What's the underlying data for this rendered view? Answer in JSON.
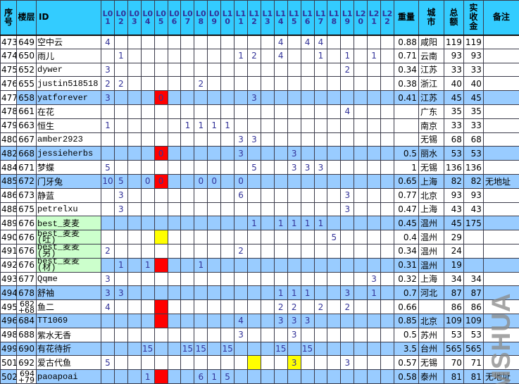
{
  "watermark": "MSHUA",
  "colors": {
    "header_bg": "#33CCFF",
    "row_highlight": "#99CCFF",
    "id_green": "#CCFFCC",
    "cell_red": "#FF0000",
    "cell_yellow": "#FFFF00",
    "digit_navy": "#333399"
  },
  "header": {
    "seq": "序号",
    "floor": "楼层",
    "id": "ID",
    "l_cols": [
      "L0\n1",
      "L0\n2",
      "L0\n3",
      "L0\n4",
      "L0\n5",
      "L0\n6",
      "L0\n7",
      "L0\n8",
      "L0\n9",
      "L1\n0",
      "L1\n1",
      "L1\n2",
      "L1\n3",
      "L1\n4",
      "L1\n5",
      "L1\n6",
      "L1\n7",
      "L1\n8",
      "L1\n9",
      "L2\n0",
      "L2\n1",
      "L2\n2"
    ],
    "weight": "重量",
    "city": "城\n市",
    "total": "总\n额",
    "received": "实\n收\n金",
    "note": "备注"
  },
  "rows": [
    {
      "seq": "473",
      "floor": "649",
      "id": "空中云",
      "cells": {
        "1": "4",
        "14": "4",
        "16": "4",
        "17": "4"
      },
      "w": "0.88",
      "city": "咸阳",
      "t": "119",
      "r": "119"
    },
    {
      "seq": "474",
      "floor": "650",
      "id": "雨儿",
      "cells": {
        "2": "1",
        "11": "1",
        "12": "2",
        "14": "4",
        "17": "1",
        "19": "1",
        "21": "1"
      },
      "w": "0.71",
      "city": "云南",
      "t": "93",
      "r": "93"
    },
    {
      "seq": "475",
      "floor": "652",
      "id": "dywer",
      "cells": {
        "1": "3",
        "19": "2"
      },
      "w": "0.34",
      "city": "江苏",
      "t": "33",
      "r": "33"
    },
    {
      "seq": "476",
      "floor": "655",
      "id": "justin518518",
      "cells": {
        "1": "2",
        "2": "2",
        "8": "2"
      },
      "w": "0.38",
      "city": "浙江",
      "t": "40",
      "r": "40"
    },
    {
      "seq": "477",
      "floor": "658",
      "id": "yatforever",
      "cells": {
        "1": "3",
        "5": "0",
        "12": "3"
      },
      "bg": {
        "5": "red"
      },
      "hl": true,
      "skip": [
        "seq"
      ],
      "w": "0.41",
      "city": "江苏",
      "t": "45",
      "r": "45"
    },
    {
      "seq": "478",
      "floor": "661",
      "id": "在花",
      "cells": {
        "19": "4"
      },
      "w": "",
      "city": "广东",
      "t": "35",
      "r": "35"
    },
    {
      "seq": "479",
      "floor": "663",
      "id": "恒生",
      "cells": {
        "1": "1",
        "7": "1",
        "8": "1",
        "9": "1",
        "10": "1"
      },
      "w": "",
      "city": "南京",
      "t": "33",
      "r": "33"
    },
    {
      "seq": "480",
      "floor": "667",
      "id": "amber2923",
      "cells": {
        "11": "3",
        "12": "3"
      },
      "w": "",
      "city": "无锡",
      "t": "68",
      "r": "68"
    },
    {
      "seq": "482",
      "floor": "668",
      "id": "jessieherbs",
      "cells": {
        "5": "0",
        "11": "3",
        "15": "3"
      },
      "bg": {
        "5": "red"
      },
      "hl": true,
      "w": "0.5",
      "city": "丽水",
      "t": "53",
      "r": "53"
    },
    {
      "seq": "484",
      "floor": "671",
      "id": "梦蝶",
      "cells": {
        "1": "5",
        "12": "5",
        "15": "3",
        "16": "3",
        "17": "3"
      },
      "w": "1",
      "city": "无锡",
      "t": "136",
      "r": "136"
    },
    {
      "seq": "485",
      "floor": "672",
      "id": "门牙兔",
      "cells": {
        "1": "10",
        "2": "5",
        "4": "0",
        "5": "0",
        "8": "0",
        "9": "0",
        "11": "0"
      },
      "bg": {
        "5": "red"
      },
      "hl": true,
      "w": "0.65",
      "city": "上海",
      "t": "82",
      "r": "82",
      "note": "无地址"
    },
    {
      "seq": "486",
      "floor": "673",
      "id": "静蓝",
      "cells": {
        "2": "3",
        "11": "6",
        "19": "3"
      },
      "w": "0.77",
      "city": "北京",
      "t": "93",
      "r": "93"
    },
    {
      "seq": "488",
      "floor": "675",
      "id": "petrelxu",
      "cells": {
        "2": "3",
        "19": "3"
      },
      "w": "0.47",
      "city": "上海",
      "t": "43",
      "r": "43"
    },
    {
      "seq": "489",
      "floor": "676",
      "id": "best_麦麦",
      "cells": {
        "12": "1",
        "14": "1",
        "15": "1",
        "16": "1",
        "17": "1"
      },
      "hl": true,
      "skip": [
        "seq",
        "floor"
      ],
      "idg": true,
      "w": "0.45",
      "city": "温州",
      "t": "45",
      "r": "175"
    },
    {
      "seq": "490",
      "floor": "676",
      "id": "best_麦麦\n(吐)",
      "wrapId": true,
      "cells": {
        "18": "5"
      },
      "bg": {
        "5": "yellow"
      },
      "idg": true,
      "w": "0.4",
      "city": "温州",
      "t": "29",
      "r": ""
    },
    {
      "seq": "491",
      "floor": "676",
      "id": "best_麦麦\n(另)",
      "wrapId": true,
      "cells": {
        "1": "2",
        "11": "2"
      },
      "idg": true,
      "w": "0.34",
      "city": "温州",
      "t": "24",
      "r": ""
    },
    {
      "seq": "492",
      "floor": "676",
      "id": "best_麦麦\n(材)",
      "wrapId": true,
      "cells": {
        "2": "1",
        "4": "1",
        "8": "1"
      },
      "bg": {
        "5": "red"
      },
      "hl": true,
      "skip": [
        "seq",
        "floor"
      ],
      "idg": true,
      "w": "0.31",
      "city": "温州",
      "t": "19",
      "r": ""
    },
    {
      "seq": "493",
      "floor": "677",
      "id": "Qqme",
      "cells": {
        "1": "3",
        "21": "3"
      },
      "w": "0.32",
      "city": "上海",
      "t": "34",
      "r": "34"
    },
    {
      "seq": "494",
      "floor": "678",
      "id": "舒袖",
      "cells": {
        "1": "3",
        "2": "3",
        "14": "1",
        "15": "1",
        "16": "1",
        "19": "3",
        "21": "1"
      },
      "hl": true,
      "w": "0.7",
      "city": "河北",
      "t": "87",
      "r": "87"
    },
    {
      "seq": "495",
      "floor": "682\n+68",
      "wrapFloor": true,
      "id": "鱼二",
      "cells": {
        "1": "4",
        "14": "2",
        "15": "2",
        "17": "2",
        "19": "2"
      },
      "bg": {
        "5": "red"
      },
      "w": "0.66",
      "city": "",
      "t": "86",
      "r": "86"
    },
    {
      "seq": "496",
      "floor": "684",
      "id": "TT1069",
      "cells": {
        "11": "4",
        "14": "3",
        "15": "3",
        "16": "3"
      },
      "bg": {
        "5": "red"
      },
      "hl": true,
      "w": "0.85",
      "city": "北京",
      "t": "109",
      "r": "109"
    },
    {
      "seq": "498",
      "floor": "688",
      "id": "紫水无香",
      "cells": {
        "11": "3",
        "15": "3"
      },
      "w": "0.5",
      "city": "苏州",
      "t": "53",
      "r": "53"
    },
    {
      "seq": "499",
      "floor": "690",
      "id": "有花待折",
      "cells": {
        "4": "15",
        "7": "15",
        "8": "15",
        "10": "15",
        "14": "15",
        "16": "15"
      },
      "hl": true,
      "w": "3.5",
      "city": "台州",
      "t": "565",
      "r": "565"
    },
    {
      "seq": "501",
      "floor": "692",
      "id": "爱古代鱼",
      "cells": {
        "1": "5",
        "15": "3",
        "19": "3"
      },
      "bg": {
        "12": "yellow",
        "15": "yellow"
      },
      "w": "0.57",
      "city": "无锡",
      "t": "70",
      "r": "71"
    },
    {
      "seq": "502",
      "floor": "694\n+79",
      "wrapFloor": true,
      "id": "paoapoai",
      "cells": {
        "4": "1",
        "8": "6",
        "9": "1",
        "10": "5"
      },
      "bg": {
        "5": "red"
      },
      "hl": true,
      "skip": [
        "floor"
      ],
      "w": "0.58",
      "city": "泰州",
      "t": "81",
      "r": "81",
      "note": "无地址"
    }
  ]
}
